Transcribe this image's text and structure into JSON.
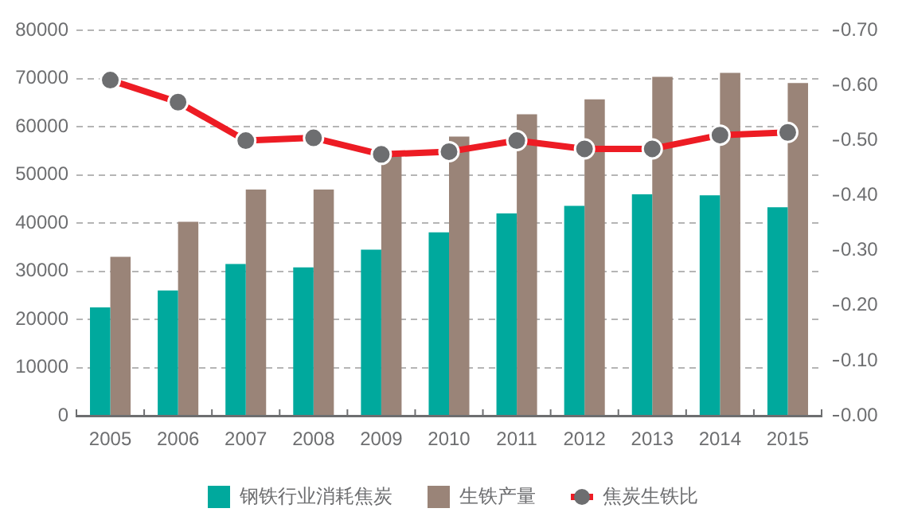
{
  "chart_data": {
    "type": "bar",
    "categories": [
      "2005",
      "2006",
      "2007",
      "2008",
      "2009",
      "2010",
      "2011",
      "2012",
      "2013",
      "2014",
      "2015"
    ],
    "series": [
      {
        "name": "钢铁行业消耗焦炭",
        "color": "#00a99d",
        "values": [
          22500,
          26000,
          31500,
          30800,
          34500,
          38100,
          42000,
          43600,
          46000,
          45800,
          43300
        ]
      },
      {
        "name": "生铁产量",
        "color": "#9a8478",
        "values": [
          33000,
          40300,
          47000,
          47000,
          54500,
          58000,
          62600,
          65700,
          70400,
          71200,
          69100
        ]
      },
      {
        "name": "焦炭生铁比",
        "type": "line",
        "axis": "y2",
        "color": "#ed1c24",
        "marker": "circle",
        "values": [
          0.61,
          0.57,
          0.5,
          0.505,
          0.475,
          0.48,
          0.5,
          0.485,
          0.485,
          0.51,
          0.515
        ]
      }
    ],
    "ylim": [
      0,
      80000
    ],
    "yticks": [
      0,
      10000,
      20000,
      30000,
      40000,
      50000,
      60000,
      70000,
      80000
    ],
    "y2lim": [
      0,
      0.7
    ],
    "y2ticks": [
      {
        "value": 0,
        "label": "0.00"
      },
      {
        "value": 0.1,
        "label": "0.10"
      },
      {
        "value": 0.2,
        "label": "0.20"
      },
      {
        "value": 0.3,
        "label": "0.30"
      },
      {
        "value": 0.4,
        "label": "0.40"
      },
      {
        "value": 0.5,
        "label": "0.50"
      },
      {
        "value": 0.6,
        "label": "0.60"
      },
      {
        "value": 0.7,
        "label": "0.70"
      }
    ],
    "grid": "y",
    "legend": "bottom"
  }
}
